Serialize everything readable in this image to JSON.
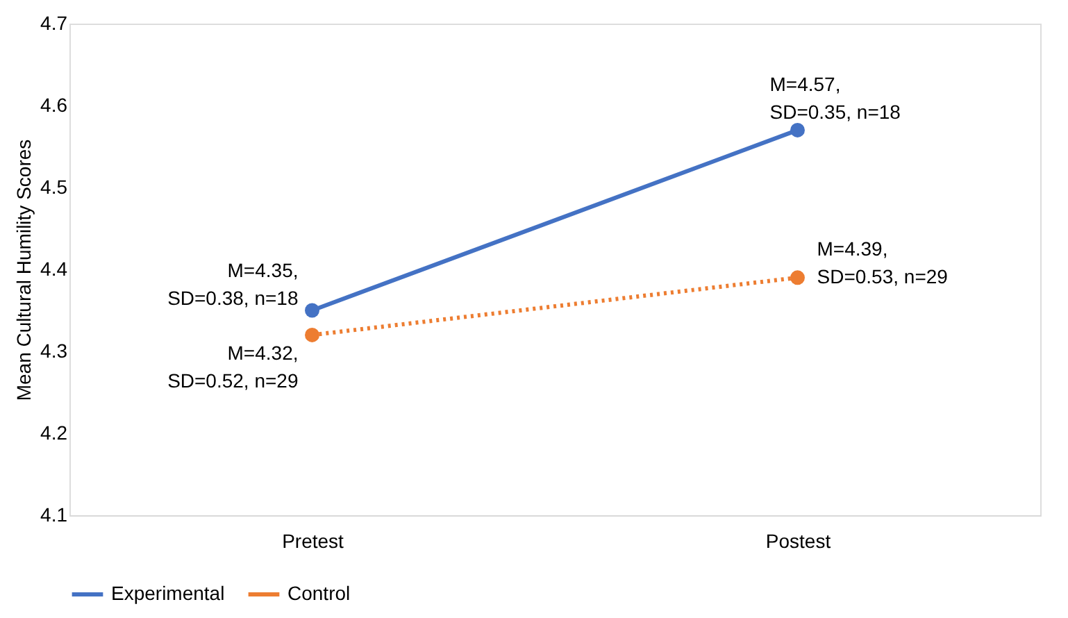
{
  "chart_data": {
    "type": "line",
    "ylabel": "Mean Cultural Humility Scores",
    "categories": [
      "Pretest",
      "Postest"
    ],
    "series": [
      {
        "name": "Experimental",
        "color": "#4472c4",
        "values": [
          4.35,
          4.57
        ],
        "line_style": "solid"
      },
      {
        "name": "Control",
        "color": "#ed7d31",
        "values": [
          4.32,
          4.39
        ],
        "line_style": "dotted"
      }
    ],
    "ylim": [
      4.1,
      4.7
    ],
    "yticks": [
      4.1,
      4.2,
      4.3,
      4.4,
      4.5,
      4.6,
      4.7
    ],
    "marker": "circle",
    "legend": "bottom",
    "grid": false,
    "annotations": [
      {
        "text": "M=4.35,\nSD=0.38, n=18",
        "x": "Pretest",
        "y": 4.35
      },
      {
        "text": "M=4.32,\nSD=0.52, n=29",
        "x": "Pretest",
        "y": 4.32
      },
      {
        "text": "M=4.57,\nSD=0.35, n=18",
        "x": "Postest",
        "y": 4.57
      },
      {
        "text": "M=4.39,\nSD=0.53, n=29",
        "x": "Postest",
        "y": 4.39
      }
    ]
  }
}
